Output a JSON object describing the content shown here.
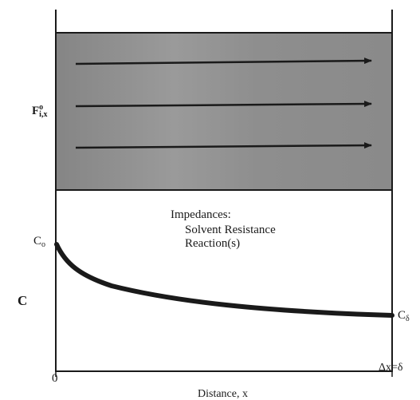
{
  "diagram": {
    "flux_symbol": "F",
    "flux_superscript": "o",
    "flux_subscript": "i,x",
    "concentration_axis_label": "C",
    "surface_concentration": {
      "symbol": "C",
      "subscript": "o"
    },
    "bulk_concentration": {
      "symbol": "C",
      "subscript": "δ"
    },
    "impedances": {
      "title": "Impedances:",
      "items": [
        "Solvent Resistance",
        "Reaction(s)"
      ]
    },
    "x_axis": {
      "origin_label": "0",
      "end_label": "Δx=δ",
      "label": "Distance, x"
    },
    "flux_arrow_count": 3,
    "colors": {
      "film_region": "#8c8c8c",
      "lines": "#1a1a1a"
    }
  }
}
